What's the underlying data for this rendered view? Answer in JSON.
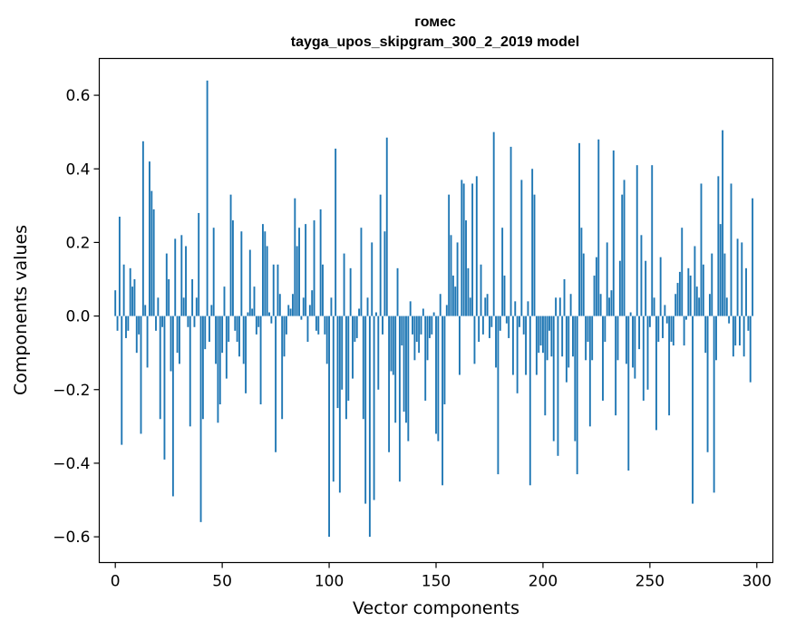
{
  "chart_data": {
    "type": "bar",
    "title": "гомес",
    "subtitle": "tayga_upos_skipgram_300_2_2019 model",
    "xlabel": "Vector components",
    "ylabel": "Components values",
    "xlim": [
      -7.5,
      307.5
    ],
    "ylim": [
      -0.67,
      0.7
    ],
    "xticks": [
      0,
      50,
      100,
      150,
      200,
      250,
      300
    ],
    "yticks": [
      -0.6,
      -0.4,
      -0.2,
      0.0,
      0.2,
      0.4,
      0.6
    ],
    "ytick_labels": [
      "−0.6",
      "−0.4",
      "−0.2",
      "0.0",
      "0.2",
      "0.4",
      "0.6"
    ],
    "color": "#1f77b4",
    "values": [
      0.07,
      -0.04,
      0.27,
      -0.35,
      0.14,
      -0.06,
      -0.04,
      0.13,
      0.08,
      0.1,
      -0.1,
      -0.05,
      -0.32,
      0.475,
      0.03,
      -0.14,
      0.42,
      0.34,
      0.29,
      -0.04,
      0.05,
      -0.28,
      -0.03,
      -0.39,
      0.17,
      0.1,
      -0.15,
      -0.49,
      0.21,
      -0.1,
      -0.13,
      0.22,
      0.05,
      0.19,
      -0.03,
      -0.3,
      0.1,
      -0.03,
      0.05,
      0.28,
      -0.56,
      -0.28,
      -0.09,
      0.64,
      -0.07,
      0.03,
      0.24,
      -0.13,
      -0.29,
      -0.24,
      -0.1,
      0.08,
      -0.17,
      -0.07,
      0.33,
      0.26,
      -0.04,
      -0.07,
      -0.11,
      0.23,
      -0.13,
      -0.21,
      0.01,
      0.18,
      0.02,
      0.08,
      -0.05,
      -0.03,
      -0.24,
      0.25,
      0.23,
      0.19,
      0.01,
      -0.02,
      0.14,
      -0.37,
      0.14,
      0.06,
      -0.28,
      -0.11,
      -0.05,
      0.03,
      0.02,
      0.06,
      0.32,
      0.19,
      0.24,
      -0.01,
      0.05,
      0.25,
      -0.07,
      0.03,
      0.07,
      0.26,
      -0.04,
      -0.05,
      0.29,
      0.14,
      -0.05,
      -0.13,
      -0.6,
      0.05,
      -0.45,
      0.455,
      -0.25,
      -0.48,
      -0.2,
      0.17,
      -0.28,
      -0.23,
      0.13,
      -0.17,
      -0.07,
      -0.06,
      0.02,
      0.24,
      -0.28,
      -0.51,
      0.05,
      -0.6,
      0.2,
      -0.5,
      0.01,
      -0.2,
      0.33,
      -0.05,
      0.23,
      0.485,
      -0.37,
      -0.15,
      -0.16,
      -0.29,
      0.13,
      -0.45,
      -0.08,
      -0.26,
      -0.29,
      -0.34,
      0.04,
      -0.05,
      -0.12,
      -0.07,
      -0.1,
      -0.05,
      0.02,
      -0.23,
      -0.12,
      -0.06,
      -0.05,
      0.01,
      -0.32,
      -0.34,
      0.06,
      -0.46,
      -0.24,
      0.03,
      0.33,
      0.22,
      0.11,
      0.08,
      0.2,
      -0.16,
      0.37,
      0.36,
      0.26,
      0.13,
      0.05,
      0.36,
      -0.13,
      0.38,
      -0.07,
      0.14,
      -0.05,
      0.05,
      0.06,
      -0.06,
      -0.03,
      0.5,
      -0.14,
      -0.43,
      -0.04,
      0.24,
      0.11,
      -0.02,
      -0.06,
      0.46,
      -0.16,
      0.04,
      -0.21,
      -0.03,
      0.37,
      -0.05,
      -0.16,
      0.04,
      -0.46,
      0.4,
      0.33,
      -0.16,
      -0.1,
      -0.08,
      -0.1,
      -0.27,
      -0.12,
      -0.04,
      -0.11,
      -0.34,
      0.05,
      -0.38,
      0.05,
      -0.11,
      0.1,
      -0.18,
      -0.14,
      0.06,
      -0.11,
      -0.34,
      -0.43,
      0.47,
      0.24,
      0.17,
      -0.12,
      -0.07,
      -0.3,
      -0.12,
      0.11,
      0.16,
      0.48,
      0.06,
      -0.23,
      -0.07,
      0.2,
      0.05,
      0.07,
      0.45,
      -0.27,
      -0.12,
      0.15,
      0.33,
      0.37,
      -0.13,
      -0.42,
      0.01,
      -0.14,
      -0.17,
      0.41,
      -0.09,
      0.22,
      -0.23,
      0.15,
      -0.2,
      -0.03,
      0.41,
      0.05,
      -0.31,
      -0.07,
      0.16,
      -0.06,
      0.03,
      -0.02,
      -0.27,
      -0.07,
      -0.08,
      0.06,
      0.09,
      0.12,
      0.24,
      -0.08,
      -0.01,
      0.13,
      0.11,
      -0.51,
      0.19,
      0.08,
      0.05,
      0.36,
      0.14,
      -0.1,
      -0.37,
      0.06,
      0.17,
      -0.48,
      -0.12,
      0.38,
      0.25,
      0.505,
      0.17,
      0.05,
      -0.02,
      0.36,
      -0.11,
      -0.08,
      0.21,
      -0.08,
      0.2,
      -0.11,
      0.13,
      -0.04,
      -0.18,
      0.32,
      0.0
    ]
  }
}
